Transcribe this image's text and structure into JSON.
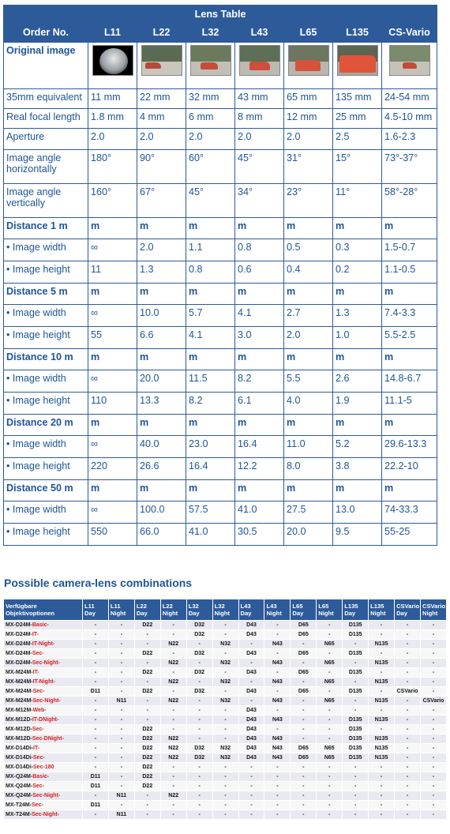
{
  "lens_table": {
    "title": "Lens Table",
    "header_first": "Order No.",
    "lenses": [
      "L11",
      "L22",
      "L32",
      "L43",
      "L65",
      "L135",
      "CS-Vario"
    ],
    "original_image_label": "Original image",
    "rows": [
      {
        "label": "35mm equivalent",
        "bold": false,
        "values": [
          "11 mm",
          "22 mm",
          "32 mm",
          "43 mm",
          "65 mm",
          "135 mm",
          "24-54 mm"
        ]
      },
      {
        "label": "Real focal length",
        "bold": false,
        "values": [
          "1.8 mm",
          "4 mm",
          "6 mm",
          "8 mm",
          "12 mm",
          "25 mm",
          "4.5-10 mm"
        ]
      },
      {
        "label": "Aperture",
        "bold": false,
        "values": [
          "2.0",
          "2.0",
          "2.0",
          "2.0",
          "2.0",
          "2.5",
          "1.6-2.3"
        ]
      },
      {
        "label": "Image angle horizontally",
        "bold": false,
        "values": [
          "180°",
          "90°",
          "60°",
          "45°",
          "31°",
          "15°",
          "73°-37°"
        ]
      },
      {
        "label": "Image angle vertically",
        "bold": false,
        "values": [
          "160°",
          "67°",
          "45°",
          "34°",
          "23°",
          "11°",
          "58°-28°"
        ]
      },
      {
        "label": "Distance 1 m",
        "bold": true,
        "values": [
          "m",
          "m",
          "m",
          "m",
          "m",
          "m",
          "m"
        ]
      },
      {
        "label": "• Image width",
        "bold": false,
        "values": [
          "∞",
          "2.0",
          "1.1",
          "0.8",
          "0.5",
          "0.3",
          "1.5-0.7"
        ]
      },
      {
        "label": "• Image height",
        "bold": false,
        "values": [
          "11",
          "1.3",
          "0.8",
          "0.6",
          "0.4",
          "0.2",
          "1.1-0.5"
        ]
      },
      {
        "label": "Distance 5 m",
        "bold": true,
        "values": [
          "m",
          "m",
          "m",
          "m",
          "m",
          "m",
          "m"
        ]
      },
      {
        "label": "• Image width",
        "bold": false,
        "values": [
          "∞",
          "10.0",
          "5.7",
          "4.1",
          "2.7",
          "1.3",
          "7.4-3.3"
        ]
      },
      {
        "label": "• Image height",
        "bold": false,
        "values": [
          "55",
          "6.6",
          "4.1",
          "3.0",
          "2.0",
          "1.0",
          "5.5-2.5"
        ]
      },
      {
        "label": "Distance 10 m",
        "bold": true,
        "values": [
          "m",
          "m",
          "m",
          "m",
          "m",
          "m",
          "m"
        ]
      },
      {
        "label": "• Image width",
        "bold": false,
        "values": [
          "∞",
          "20.0",
          "11.5",
          "8.2",
          "5.5",
          "2.6",
          "14.8-6.7"
        ]
      },
      {
        "label": "• Image height",
        "bold": false,
        "values": [
          "110",
          "13.3",
          "8.2",
          "6.1",
          "4.0",
          "1.9",
          "11.1-5"
        ]
      },
      {
        "label": "Distance 20 m",
        "bold": true,
        "values": [
          "m",
          "m",
          "m",
          "m",
          "m",
          "m",
          "m"
        ]
      },
      {
        "label": "• Image width",
        "bold": false,
        "values": [
          "∞",
          "40.0",
          "23.0",
          "16.4",
          "11.0",
          "5.2",
          "29.6-13.3"
        ]
      },
      {
        "label": "• Image height",
        "bold": false,
        "values": [
          "220",
          "26.6",
          "16.4",
          "12.2",
          "8.0",
          "3.8",
          "22.2-10"
        ]
      },
      {
        "label": "Distance 50 m",
        "bold": true,
        "values": [
          "m",
          "m",
          "m",
          "m",
          "m",
          "m",
          "m"
        ]
      },
      {
        "label": "• Image width",
        "bold": false,
        "values": [
          "∞",
          "100.0",
          "57.5",
          "41.0",
          "27.5",
          "13.0",
          "74-33.3"
        ]
      },
      {
        "label": "• Image height",
        "bold": false,
        "values": [
          "550",
          "66.0",
          "41.0",
          "30.5",
          "20.0",
          "9.5",
          "55-25"
        ]
      }
    ]
  },
  "combinations": {
    "title": "Possible camera-lens combinations",
    "header_first": "Verfügbare Objektivoptionen",
    "columns": [
      "L11 Day",
      "L11 Night",
      "L22 Day",
      "L22 Night",
      "L32 Day",
      "L32 Night",
      "L43 Day",
      "L43 Night",
      "L65 Day",
      "L65 Night",
      "L135 Day",
      "L135 Night",
      "CSVario Day",
      "CSVario Night"
    ],
    "rows": [
      {
        "model": "MX-D24M-",
        "variant": "Basic-",
        "extra": "",
        "values": [
          "-",
          "-",
          "D22",
          "-",
          "D32",
          "-",
          "D43",
          "-",
          "D65",
          "-",
          "D135",
          "-",
          "-",
          "-"
        ]
      },
      {
        "model": "MX-D24M-",
        "variant": "IT-",
        "extra": "",
        "values": [
          "-",
          "-",
          "-",
          "-",
          "D32",
          "-",
          "D43",
          "-",
          "D65",
          "-",
          "D135",
          "-",
          "-",
          "-"
        ]
      },
      {
        "model": "MX-D24M-",
        "variant": "IT-",
        "extra": "Night-",
        "values": [
          "-",
          "-",
          "-",
          "N22",
          "-",
          "N32",
          "-",
          "N43",
          "-",
          "N65",
          "-",
          "N135",
          "-",
          "-"
        ]
      },
      {
        "model": "MX-D24M-",
        "variant": "Sec-",
        "extra": "",
        "values": [
          "-",
          "-",
          "D22",
          "-",
          "D32",
          "-",
          "D43",
          "-",
          "D65",
          "-",
          "D135",
          "-",
          "-",
          "-"
        ]
      },
      {
        "model": "MX-D24M-",
        "variant": "Sec-",
        "extra": "Night-",
        "values": [
          "-",
          "-",
          "-",
          "N22",
          "-",
          "N32",
          "-",
          "N43",
          "-",
          "N65",
          "-",
          "N135",
          "-",
          "-"
        ]
      },
      {
        "model": "MX-M24M-",
        "variant": "IT-",
        "extra": "",
        "values": [
          "-",
          "-",
          "D22",
          "-",
          "D32",
          "-",
          "D43",
          "-",
          "D65",
          "-",
          "D135",
          "-",
          "-",
          "-"
        ]
      },
      {
        "model": "MX-M24M-",
        "variant": "IT-",
        "extra": "Night-",
        "values": [
          "-",
          "-",
          "-",
          "N22",
          "-",
          "N32",
          "-",
          "N43",
          "-",
          "N65",
          "-",
          "N135",
          "-",
          "-"
        ]
      },
      {
        "model": "MX-M24M-",
        "variant": "Sec-",
        "extra": "",
        "values": [
          "D11",
          "-",
          "D22",
          "-",
          "D32",
          "-",
          "D43",
          "-",
          "D65",
          "-",
          "D135",
          "-",
          "CSVario",
          "-"
        ]
      },
      {
        "model": "MX-M24M-",
        "variant": "Sec-",
        "extra": "Night-",
        "values": [
          "-",
          "N11",
          "-",
          "N22",
          "-",
          "N32",
          "-",
          "N43",
          "-",
          "N65",
          "-",
          "N135",
          "-",
          "CSVario"
        ]
      },
      {
        "model": "MX-M12M-",
        "variant": "Web-",
        "extra": "",
        "values": [
          "-",
          "-",
          "-",
          "-",
          "-",
          "-",
          "D43",
          "-",
          "-",
          "-",
          "-",
          "-",
          "-",
          "-"
        ]
      },
      {
        "model": "MX-M12D-",
        "variant": "IT-",
        "extra": "DNight-",
        "values": [
          "-",
          "-",
          "-",
          "-",
          "-",
          "-",
          "D43",
          "N43",
          "-",
          "-",
          "D135",
          "N135",
          "-",
          "-"
        ]
      },
      {
        "model": "MX-M12D-",
        "variant": "Sec-",
        "extra": "",
        "values": [
          "-",
          "-",
          "D22",
          "-",
          "-",
          "-",
          "D43",
          "-",
          "-",
          "-",
          "D135",
          "-",
          "-",
          "-"
        ]
      },
      {
        "model": "MX-M12D-",
        "variant": "Sec-",
        "extra": "DNight-",
        "values": [
          "-",
          "-",
          "D22",
          "N22",
          "-",
          "-",
          "D43",
          "N43",
          "-",
          "-",
          "D135",
          "N135",
          "-",
          "-"
        ]
      },
      {
        "model": "MX-D14Di-",
        "variant": "IT-",
        "extra": "",
        "values": [
          "-",
          "-",
          "D22",
          "N22",
          "D32",
          "N32",
          "D43",
          "N43",
          "D65",
          "N65",
          "D135",
          "N135",
          "-",
          "-"
        ]
      },
      {
        "model": "MX-D14Di-",
        "variant": "Sec-",
        "extra": "",
        "values": [
          "-",
          "-",
          "D22",
          "N22",
          "D32",
          "N32",
          "D43",
          "N43",
          "D65",
          "N65",
          "D135",
          "N135",
          "-",
          "-"
        ]
      },
      {
        "model": "MX-D14Di-",
        "variant": "Sec-",
        "extra": "180",
        "values": [
          "-",
          "-",
          "D22",
          "-",
          "-",
          "-",
          "-",
          "-",
          "-",
          "-",
          "-",
          "-",
          "-",
          "-"
        ]
      },
      {
        "model": "MX-Q24M-",
        "variant": "Basic-",
        "extra": "",
        "values": [
          "D11",
          "-",
          "D22",
          "-",
          "-",
          "-",
          "-",
          "-",
          "-",
          "-",
          "-",
          "-",
          "-",
          "-"
        ]
      },
      {
        "model": "MX-Q24M-",
        "variant": "Sec-",
        "extra": "",
        "values": [
          "D11",
          "-",
          "D22",
          "-",
          "-",
          "-",
          "-",
          "-",
          "-",
          "-",
          "-",
          "-",
          "-",
          "-"
        ]
      },
      {
        "model": "MX-Q24M-",
        "variant": "Sec-",
        "extra": "Night-",
        "values": [
          "-",
          "N11",
          "-",
          "N22",
          "-",
          "-",
          "-",
          "-",
          "-",
          "-",
          "-",
          "-",
          "-",
          "-"
        ]
      },
      {
        "model": "MX-T24M-",
        "variant": "Sec-",
        "extra": "",
        "values": [
          "D11",
          "-",
          "-",
          "-",
          "-",
          "-",
          "-",
          "-",
          "-",
          "-",
          "-",
          "-",
          "-",
          "-"
        ]
      },
      {
        "model": "MX-T24M-",
        "variant": "Sec-",
        "extra": "Night-",
        "values": [
          "-",
          "N11",
          "-",
          "-",
          "-",
          "-",
          "-",
          "-",
          "-",
          "-",
          "-",
          "-",
          "-",
          "-"
        ]
      }
    ]
  }
}
